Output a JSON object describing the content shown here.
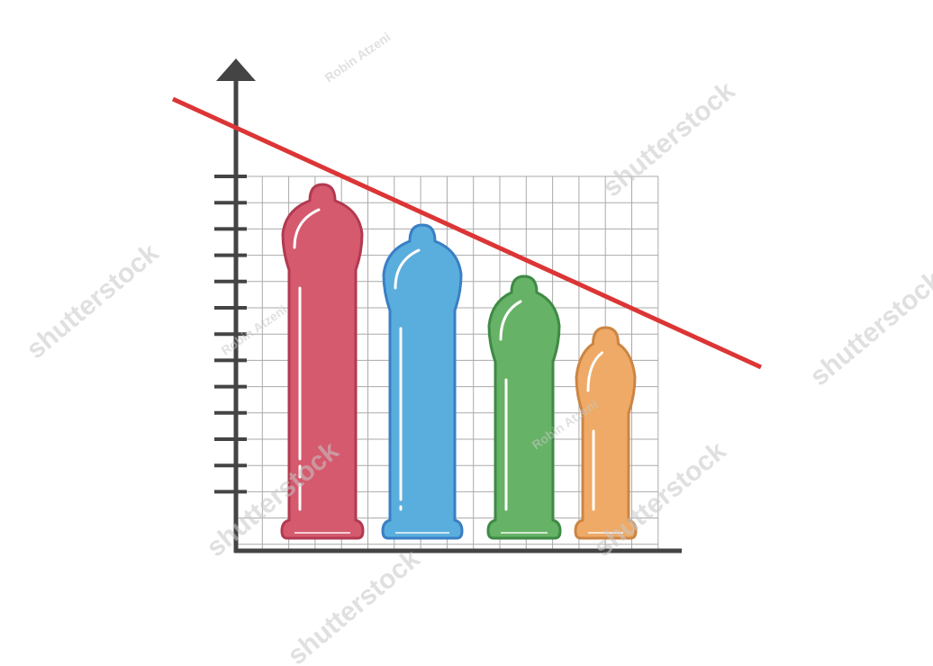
{
  "watermark": {
    "brand": "shutterstock",
    "author": "Robin Atzeni"
  }
}
